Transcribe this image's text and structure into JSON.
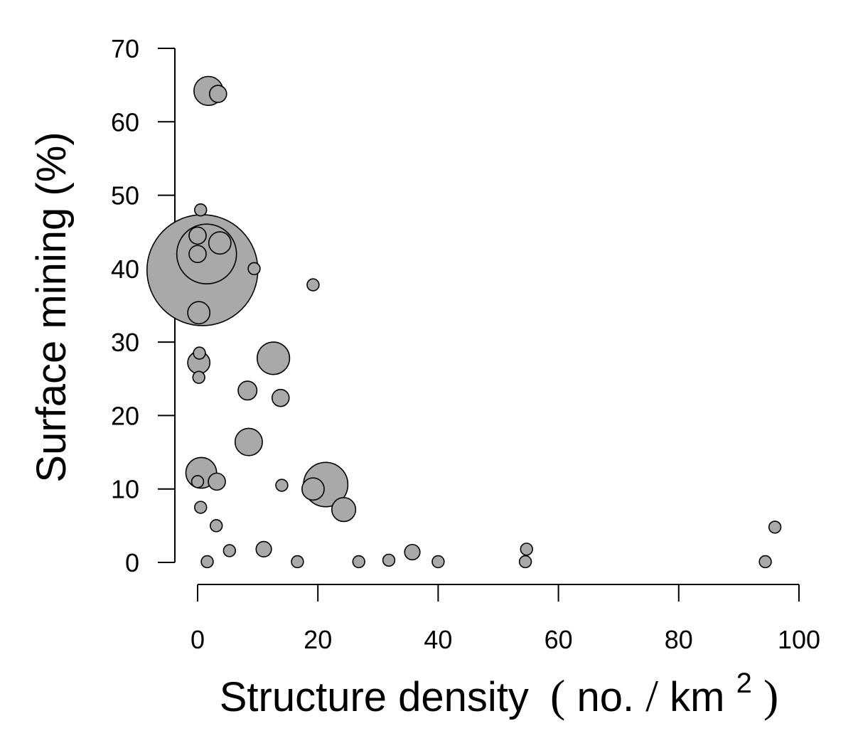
{
  "chart_data": {
    "type": "scatter",
    "title": "",
    "xlabel": {
      "main": "Structure density",
      "unit_open": "(",
      "unit_num": "no.",
      "unit_sep": "/",
      "unit_den": "km",
      "unit_sup": "2",
      "unit_close": ")"
    },
    "ylabel": "Surface mining (%)",
    "xlim": [
      0,
      100
    ],
    "ylim": [
      0,
      70
    ],
    "xticks": [
      "0",
      "20",
      "40",
      "60",
      "80",
      "100"
    ],
    "yticks": [
      "0",
      "10",
      "20",
      "30",
      "40",
      "50",
      "60",
      "70"
    ],
    "grid": false,
    "legend": "none",
    "colors": {
      "fill": "#a9a9a9",
      "stroke": "#000000"
    },
    "points": [
      {
        "x": 0.8,
        "y": 39.8,
        "size": 6.5
      },
      {
        "x": 1.5,
        "y": 42.0,
        "size": 3.5
      },
      {
        "x": 1.8,
        "y": 64.2,
        "size": 1.7
      },
      {
        "x": 3.4,
        "y": 63.8,
        "size": 1.0
      },
      {
        "x": 0.5,
        "y": 48.0,
        "size": 0.7
      },
      {
        "x": 0.0,
        "y": 44.5,
        "size": 1.0
      },
      {
        "x": 3.7,
        "y": 43.5,
        "size": 1.3
      },
      {
        "x": 0.0,
        "y": 42.0,
        "size": 1.0
      },
      {
        "x": 9.4,
        "y": 40.0,
        "size": 0.7
      },
      {
        "x": 19.2,
        "y": 37.8,
        "size": 0.7
      },
      {
        "x": 0.2,
        "y": 34.0,
        "size": 1.3
      },
      {
        "x": 0.3,
        "y": 28.5,
        "size": 0.7
      },
      {
        "x": 0.2,
        "y": 27.2,
        "size": 1.3
      },
      {
        "x": 0.2,
        "y": 25.2,
        "size": 0.7
      },
      {
        "x": 12.6,
        "y": 27.8,
        "size": 1.9
      },
      {
        "x": 8.3,
        "y": 23.4,
        "size": 1.1
      },
      {
        "x": 13.8,
        "y": 22.4,
        "size": 1.0
      },
      {
        "x": 8.5,
        "y": 16.4,
        "size": 1.6
      },
      {
        "x": 0.0,
        "y": 11.0,
        "size": 0.7
      },
      {
        "x": 0.6,
        "y": 12.2,
        "size": 1.8
      },
      {
        "x": 3.2,
        "y": 11.0,
        "size": 1.0
      },
      {
        "x": 14.0,
        "y": 10.5,
        "size": 0.7
      },
      {
        "x": 19.2,
        "y": 10.0,
        "size": 1.3
      },
      {
        "x": 21.3,
        "y": 10.6,
        "size": 2.6
      },
      {
        "x": 24.3,
        "y": 7.2,
        "size": 1.4
      },
      {
        "x": 0.5,
        "y": 7.5,
        "size": 0.7
      },
      {
        "x": 3.1,
        "y": 5.0,
        "size": 0.7
      },
      {
        "x": 5.3,
        "y": 1.6,
        "size": 0.7
      },
      {
        "x": 11.0,
        "y": 1.8,
        "size": 0.9
      },
      {
        "x": 1.6,
        "y": 0.1,
        "size": 0.7
      },
      {
        "x": 16.6,
        "y": 0.1,
        "size": 0.7
      },
      {
        "x": 26.8,
        "y": 0.1,
        "size": 0.7
      },
      {
        "x": 31.8,
        "y": 0.3,
        "size": 0.7
      },
      {
        "x": 35.7,
        "y": 1.4,
        "size": 0.9
      },
      {
        "x": 40.0,
        "y": 0.1,
        "size": 0.7
      },
      {
        "x": 54.5,
        "y": 0.1,
        "size": 0.7
      },
      {
        "x": 54.7,
        "y": 1.8,
        "size": 0.7
      },
      {
        "x": 94.4,
        "y": 0.1,
        "size": 0.7
      },
      {
        "x": 96.0,
        "y": 4.8,
        "size": 0.7
      }
    ]
  }
}
